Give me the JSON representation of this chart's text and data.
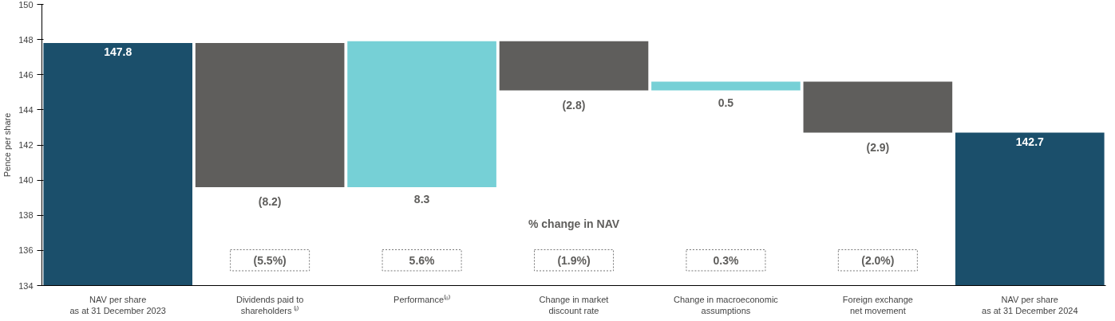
{
  "chart_data": {
    "type": "bar",
    "ylabel": "Pence per share",
    "categories": [
      "NAV per share\nas at 31 December 2023",
      "Dividends paid to\nshareholders ⁽ⁱ⁾",
      "Performance⁽ⁱⁱ⁾",
      "Change in market\ndiscount rate",
      "Change in macroeconomic\nassumptions",
      "Foreign exchange\nnet movement",
      "NAV per share\nas at 31 December 2024"
    ],
    "values": [
      147.8,
      -8.2,
      8.3,
      -2.8,
      0.5,
      -2.9,
      142.7
    ],
    "base": [
      null,
      147.8,
      139.6,
      147.9,
      145.1,
      145.6,
      null
    ],
    "colors": [
      "#1b4f6b",
      "#5f5e5c",
      "#76d0d6",
      "#5f5e5c",
      "#76d0d6",
      "#5f5e5c",
      "#1b4f6b"
    ],
    "value_labels": [
      "147.8",
      "(8.2)",
      "8.3",
      "(2.8)",
      "0.5",
      "(2.9)",
      "142.7"
    ],
    "annotations": [
      "% change in NAV",
      "(5.5%)",
      "5.6%",
      "(1.9%)",
      "0.3%",
      "(2.0%)"
    ],
    "ylim": [
      134,
      150
    ],
    "yticks": [
      134,
      136,
      138,
      140,
      142,
      144,
      146,
      148,
      150
    ],
    "grid": false
  }
}
